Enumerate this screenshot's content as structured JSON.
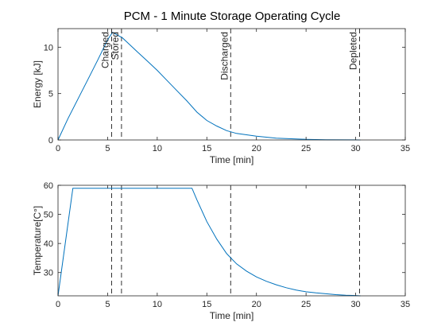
{
  "chart_data": [
    {
      "type": "line",
      "title": "PCM - 1 Minute Storage Operating Cycle",
      "xlabel": "Time [min]",
      "ylabel": "Energy [kJ]",
      "xlim": [
        0,
        35
      ],
      "ylim": [
        0,
        12
      ],
      "xticks": [
        0,
        5,
        10,
        15,
        20,
        25,
        30,
        35
      ],
      "yticks": [
        0,
        5,
        10
      ],
      "grid": false,
      "series": [
        {
          "name": "",
          "color": "#0072BD",
          "x": [
            0,
            1,
            2,
            3,
            4,
            5,
            5.5,
            6,
            6.5,
            7,
            8,
            9,
            10,
            11,
            12,
            13,
            14,
            15,
            16,
            17,
            18,
            20,
            22,
            25,
            27,
            30,
            30.5
          ],
          "y": [
            0,
            2.3,
            4.4,
            6.5,
            8.6,
            10.8,
            11.6,
            11.3,
            11.0,
            10.5,
            9.5,
            8.5,
            7.5,
            6.4,
            5.3,
            4.2,
            3.0,
            2.1,
            1.5,
            1.0,
            0.7,
            0.4,
            0.2,
            0.07,
            0.03,
            0.01,
            0.0
          ]
        }
      ],
      "events": [
        {
          "x": 5.4,
          "label": "Charged"
        },
        {
          "x": 6.4,
          "label": "Stored"
        },
        {
          "x": 17.4,
          "label": "Discharged"
        },
        {
          "x": 30.4,
          "label": "Depleted"
        }
      ]
    },
    {
      "type": "line",
      "title": "",
      "xlabel": "Time [min]",
      "ylabel": "Temperature[C°]",
      "xlim": [
        0,
        35
      ],
      "ylim": [
        22,
        60
      ],
      "xticks": [
        0,
        5,
        10,
        15,
        20,
        25,
        30,
        35
      ],
      "yticks": [
        30,
        40,
        50,
        60
      ],
      "grid": false,
      "series": [
        {
          "name": "",
          "color": "#0072BD",
          "x": [
            0,
            1.5,
            13.5,
            14,
            15,
            16,
            17,
            18,
            19,
            20,
            21,
            22,
            23,
            24,
            25,
            26,
            27,
            28,
            29,
            30,
            30.5
          ],
          "y": [
            22,
            59,
            59,
            55,
            47.5,
            41.5,
            36.5,
            33.0,
            30.5,
            28.5,
            27.0,
            25.8,
            24.8,
            24.0,
            23.4,
            23.0,
            22.7,
            22.4,
            22.2,
            22.1,
            22.0
          ]
        }
      ],
      "events": [
        {
          "x": 5.4
        },
        {
          "x": 6.4
        },
        {
          "x": 17.4
        },
        {
          "x": 30.4
        }
      ]
    }
  ]
}
